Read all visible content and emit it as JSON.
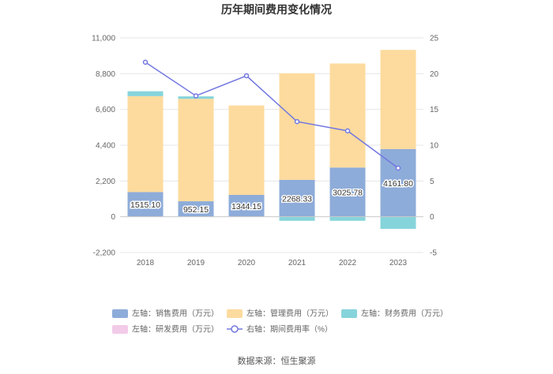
{
  "chart_data": {
    "type": "bar",
    "title": "历年期间费用变化情况",
    "categories": [
      "2018",
      "2019",
      "2020",
      "2021",
      "2022",
      "2023"
    ],
    "series": [
      {
        "name": "左轴：销售费用（万元）",
        "axis": "left",
        "stack": "expense",
        "color": "#8eacd9",
        "values": [
          1515.1,
          952.15,
          1344.15,
          2268.33,
          3025.78,
          4161.8
        ]
      },
      {
        "name": "左轴：管理费用（万元）",
        "axis": "left",
        "stack": "expense",
        "color": "#fddb9e",
        "values": [
          5900,
          6300,
          5500,
          6550,
          6400,
          6100
        ]
      },
      {
        "name": "左轴：财务费用（万元）",
        "axis": "left",
        "stack": "expense",
        "color": "#86d4db",
        "values": [
          300,
          150,
          0,
          -250,
          -250,
          -750
        ]
      },
      {
        "name": "左轴：研发费用（万元）",
        "axis": "left",
        "stack": "expense",
        "color": "#f2cbe8",
        "values": [
          0,
          0,
          0,
          0,
          0,
          0
        ]
      },
      {
        "name": "右轴：期间费用率（%）",
        "axis": "right",
        "type": "line",
        "color": "#7378e0",
        "values": [
          21.6,
          16.9,
          19.7,
          13.3,
          12.0,
          6.8
        ]
      }
    ],
    "data_labels": [
      "1515.10",
      "952.15",
      "1344.15",
      "2268.33",
      "3025.78",
      "4161.80"
    ],
    "y_left": {
      "ticks": [
        "11,000",
        "8,800",
        "6,600",
        "4,400",
        "2,200",
        "0",
        "-2,200"
      ],
      "min": -2200,
      "max": 11000
    },
    "y_right": {
      "ticks": [
        "25",
        "20",
        "15",
        "10",
        "5",
        "0",
        "-5"
      ],
      "min": -5,
      "max": 25
    },
    "grid": true,
    "legend_position": "bottom"
  },
  "source": "数据来源：恒生聚源"
}
